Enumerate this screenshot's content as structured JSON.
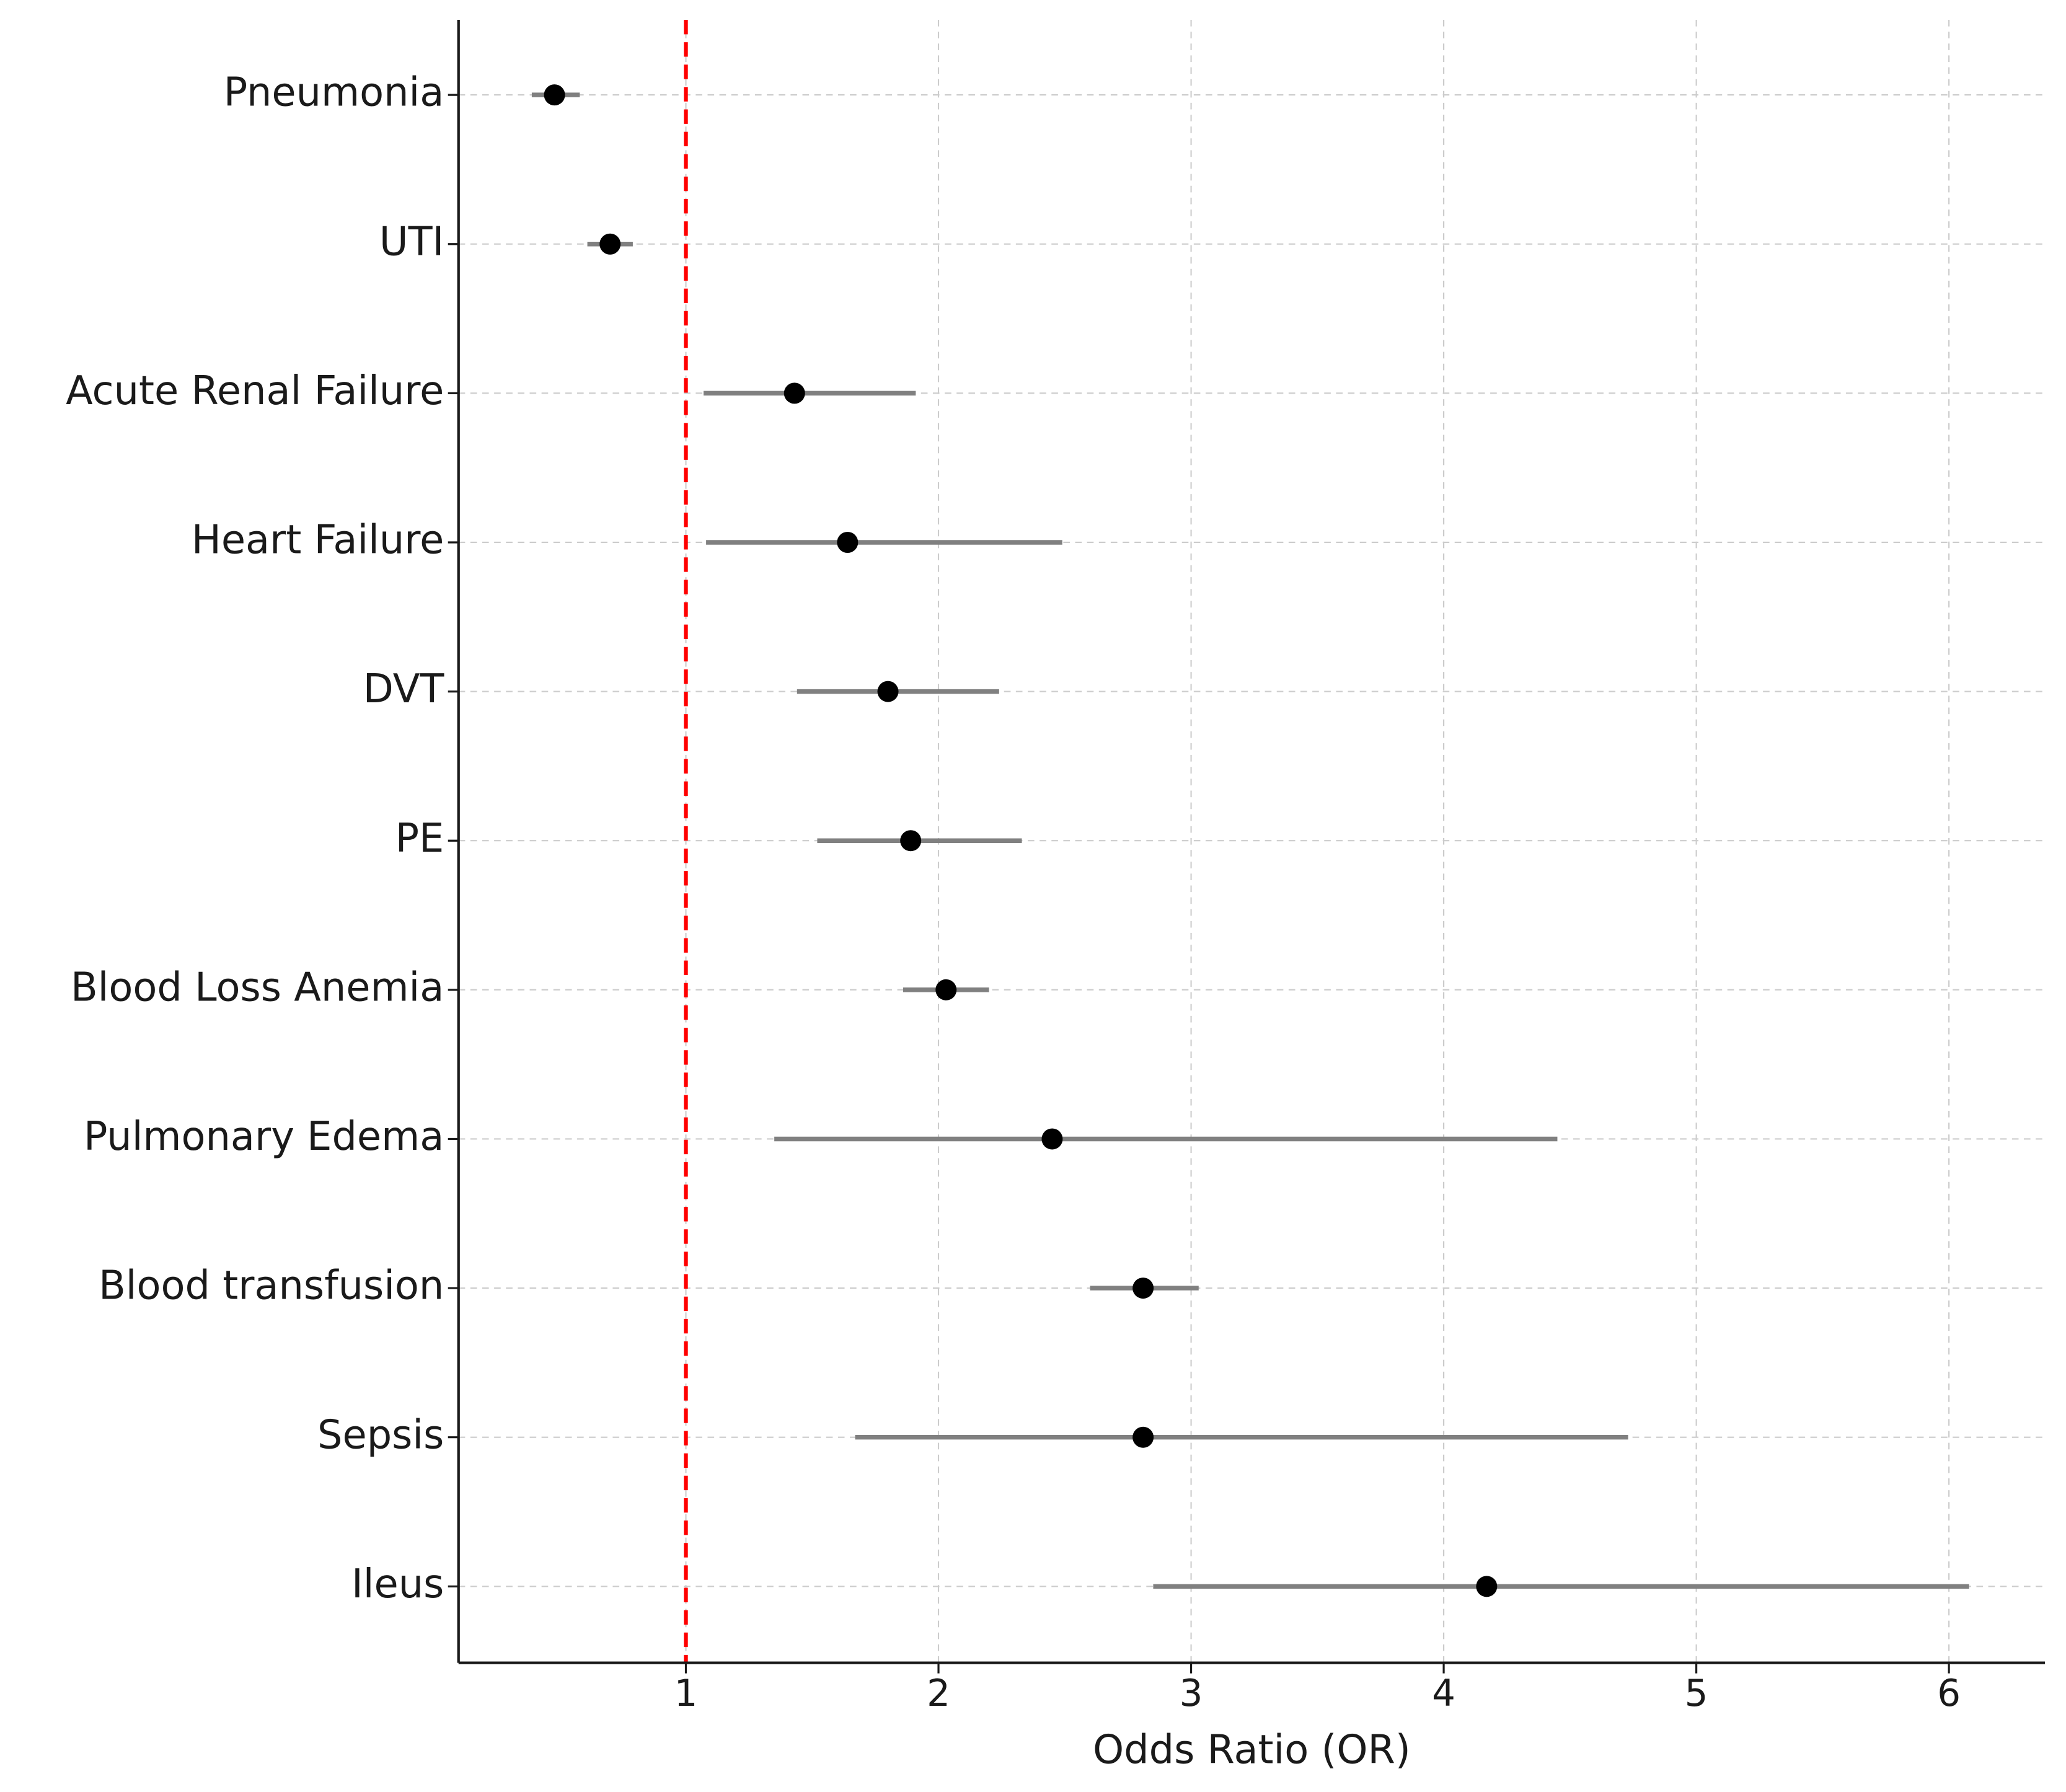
{
  "chart_data": {
    "type": "forest",
    "xlabel": "Odds Ratio (OR)",
    "categories": [
      "Pneumonia",
      "UTI",
      "Acute Renal Failure",
      "Heart Failure",
      "DVT",
      "PE",
      "Blood Loss Anemia",
      "Pulmonary Edema",
      "Blood transfusion",
      "Sepsis",
      "Ileus"
    ],
    "values": [
      0.48,
      0.7,
      1.43,
      1.64,
      1.8,
      1.89,
      2.03,
      2.45,
      2.81,
      2.81,
      4.17
    ],
    "lower": [
      0.39,
      0.61,
      1.07,
      1.08,
      1.44,
      1.52,
      1.86,
      1.35,
      2.6,
      1.67,
      2.85
    ],
    "upper": [
      0.58,
      0.79,
      1.91,
      2.49,
      2.24,
      2.33,
      2.2,
      4.45,
      3.03,
      4.73,
      6.08
    ],
    "color": "#000000",
    "ci_color": "#808080",
    "reference_line": 1,
    "reference_color": "#ff0000",
    "xlim": [
      0.1,
      6.38
    ],
    "xticks": [
      1,
      2,
      3,
      4,
      5,
      6
    ],
    "grid": true
  }
}
